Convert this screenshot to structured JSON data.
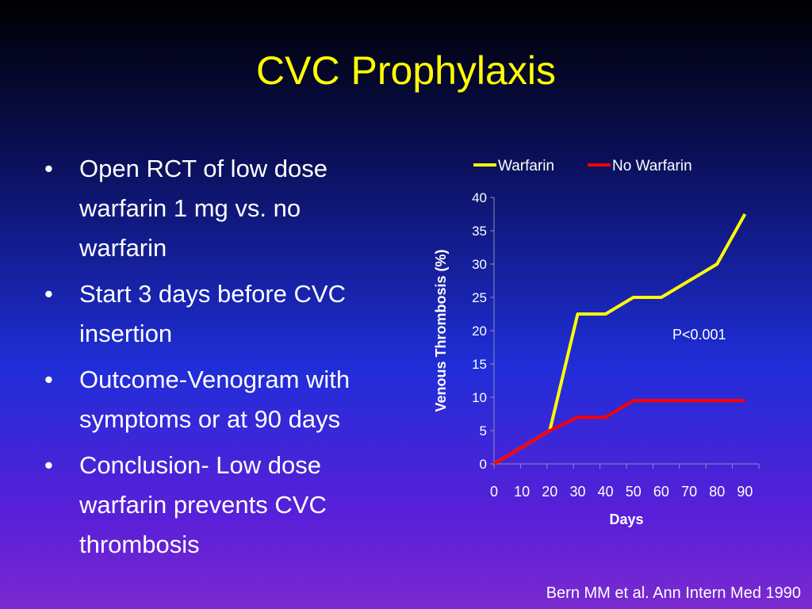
{
  "title": "CVC Prophylaxis",
  "bullets": [
    "Open  RCT of low dose warfarin 1 mg vs. no warfarin",
    "Start 3 days before CVC insertion",
    "Outcome-Venogram with symptoms or at 90 days",
    "Conclusion- Low dose warfarin prevents CVC thrombosis"
  ],
  "citation": "Bern MM et al. Ann Intern Med 1990",
  "chart_data": {
    "type": "line",
    "xlabel": "Days",
    "ylabel": "Venous Thrombosis (%)",
    "x_ticks": [
      0,
      10,
      20,
      30,
      40,
      50,
      60,
      70,
      80,
      90
    ],
    "y_ticks": [
      0,
      5,
      10,
      15,
      20,
      25,
      30,
      35,
      40
    ],
    "xlim": [
      0,
      95
    ],
    "ylim": [
      0,
      40
    ],
    "legend_position": "top",
    "annotation": "P<0.001",
    "series": [
      {
        "name": "Warfarin",
        "color": "#ffff00",
        "points": [
          [
            0,
            0
          ],
          [
            20,
            5
          ],
          [
            30,
            22.5
          ],
          [
            40,
            22.5
          ],
          [
            50,
            25
          ],
          [
            60,
            25
          ],
          [
            80,
            30
          ],
          [
            90,
            37.5
          ]
        ]
      },
      {
        "name": "No Warfarin",
        "color": "#ff0000",
        "points": [
          [
            0,
            0
          ],
          [
            20,
            5
          ],
          [
            30,
            7
          ],
          [
            40,
            7
          ],
          [
            50,
            9.5
          ],
          [
            60,
            9.5
          ],
          [
            80,
            9.5
          ],
          [
            90,
            9.5
          ]
        ]
      }
    ]
  }
}
